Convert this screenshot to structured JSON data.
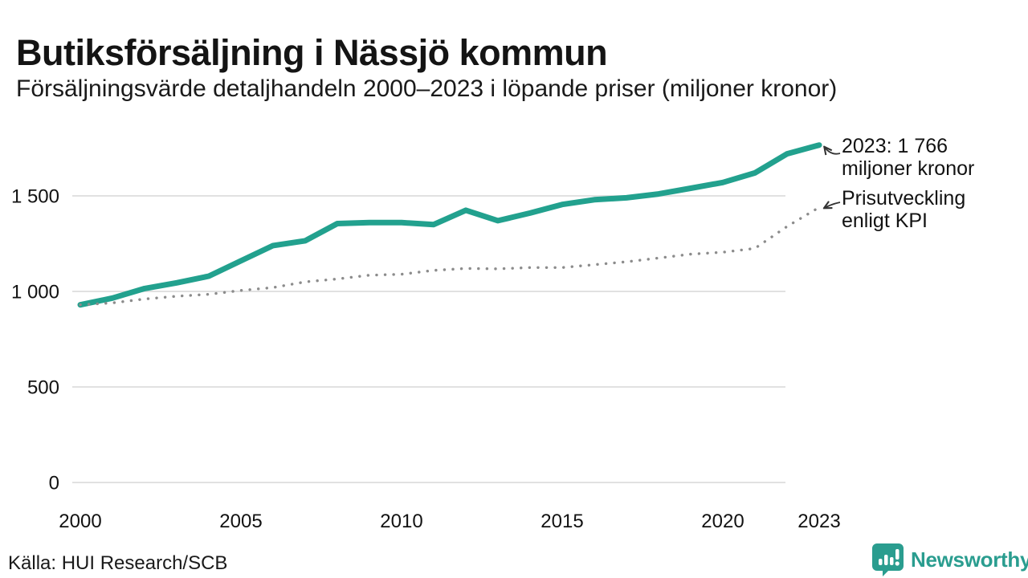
{
  "header": {
    "title": "Butiksförsäljning i Nässjö kommun",
    "subtitle": "Försäljningsvärde detaljhandeln 2000–2023 i löpande priser (miljoner kronor)"
  },
  "chart_data": {
    "type": "line",
    "title": "Butiksförsäljning i Nässjö kommun",
    "subtitle": "Försäljningsvärde detaljhandeln 2000–2023 i löpande priser (miljoner kronor)",
    "unit": "miljoner kronor",
    "x": [
      2000,
      2001,
      2002,
      2003,
      2004,
      2005,
      2006,
      2007,
      2008,
      2009,
      2010,
      2011,
      2012,
      2013,
      2014,
      2015,
      2016,
      2017,
      2018,
      2019,
      2020,
      2021,
      2022,
      2023
    ],
    "series": [
      {
        "name": "Försäljningsvärde i löpande priser",
        "style": "solid",
        "color": "#22a18e",
        "values": [
          930,
          965,
          1015,
          1045,
          1080,
          1160,
          1240,
          1265,
          1355,
          1360,
          1360,
          1350,
          1425,
          1370,
          1410,
          1455,
          1480,
          1490,
          1510,
          1540,
          1570,
          1620,
          1720,
          1766
        ]
      },
      {
        "name": "Prisutveckling enligt KPI",
        "style": "dotted",
        "color": "#8c8c8c",
        "values": [
          930,
          940,
          960,
          975,
          985,
          1005,
          1020,
          1050,
          1065,
          1085,
          1090,
          1110,
          1120,
          1118,
          1125,
          1125,
          1140,
          1155,
          1175,
          1195,
          1205,
          1225,
          1340,
          1440
        ]
      }
    ],
    "ylim": [
      0,
      1880
    ],
    "grid": true,
    "legend_position": "inline-annotations",
    "yticks": [
      {
        "value": 0,
        "label": "0"
      },
      {
        "value": 500,
        "label": "500"
      },
      {
        "value": 1000,
        "label": "1 000"
      },
      {
        "value": 1500,
        "label": "1 500"
      }
    ],
    "xticks": [
      {
        "year": 2000,
        "label": "2000"
      },
      {
        "year": 2005,
        "label": "2005"
      },
      {
        "year": 2010,
        "label": "2010"
      },
      {
        "year": 2015,
        "label": "2015"
      },
      {
        "year": 2020,
        "label": "2020"
      },
      {
        "year": 2023,
        "label": "2023"
      }
    ],
    "annotations": [
      {
        "lines": [
          "2023: 1 766",
          "miljoner kronor"
        ],
        "series": 0
      },
      {
        "lines": [
          "Prisutveckling",
          "enligt KPI"
        ],
        "series": 1
      }
    ]
  },
  "footer": {
    "source": "Källa: HUI Research/SCB",
    "logo_text": "Newsworthy"
  },
  "colors": {
    "accent": "#22a18e",
    "brand": "#2a9d8f",
    "kpi_line": "#8c8c8c",
    "gridline": "#e1e1e1"
  }
}
